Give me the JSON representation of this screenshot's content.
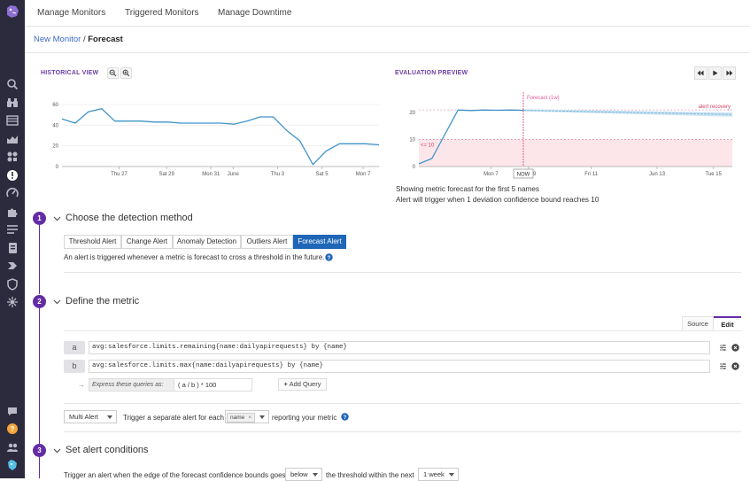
{
  "nav": {
    "tabs": [
      "Manage Monitors",
      "Triggered Monitors",
      "Manage Downtime"
    ]
  },
  "sidebar": {
    "icons": [
      "search-icon",
      "binoculars-icon",
      "dashboard-icon",
      "infrastructure-icon",
      "integrations-icon",
      "monitors-icon",
      "apm-icon",
      "puzzle-icon",
      "logs-icon",
      "notebook-icon",
      "synthetics-icon",
      "security-icon",
      "rum-icon",
      "chat-icon",
      "help-icon",
      "team-icon",
      "user-icon"
    ]
  },
  "breadcrumb": {
    "link": "New Monitor",
    "separator": "/",
    "current": "Forecast"
  },
  "historical": {
    "title": "HISTORICAL VIEW",
    "chart_data": {
      "type": "line",
      "title": "",
      "ylim": [
        0,
        60
      ],
      "yticks": [
        0,
        20,
        40,
        60
      ],
      "xticks": [
        "Thu 27",
        "Sat 29",
        "Mon 31",
        "June",
        "Thu 3",
        "Sat 5",
        "Mon 7"
      ],
      "series": [
        {
          "color": "#3f93c9",
          "x": [
            0,
            1,
            2,
            3,
            4,
            5,
            6,
            7,
            8,
            9,
            10,
            11,
            12,
            13,
            14,
            15,
            16,
            17,
            18,
            19,
            20,
            21,
            22,
            23,
            24
          ],
          "values": [
            46,
            42,
            53,
            56,
            44,
            44,
            44,
            43,
            43,
            42,
            42,
            42,
            42,
            41,
            44,
            48,
            48,
            35,
            25,
            2,
            15,
            22,
            22,
            22,
            21
          ]
        }
      ]
    }
  },
  "evaluation": {
    "title": "EVALUATION PREVIEW",
    "chart_data": {
      "type": "line",
      "title": "",
      "ylim": [
        0,
        25
      ],
      "yticks": [
        0,
        10,
        20
      ],
      "xticks": [
        "Mon 7",
        "Wed 9",
        "Fri 11",
        "Jun 13",
        "Tue 15"
      ],
      "threshold_alert": 10,
      "threshold_label": "<= 10",
      "recovery_label": "alert recovery",
      "forecast_label": "Forecast (1w)",
      "now_label": "NOW",
      "series": [
        {
          "color": "#3f93c9",
          "x": [
            0,
            1,
            2,
            3,
            4,
            5,
            6,
            7,
            8
          ],
          "values": [
            1,
            3,
            12,
            21,
            20.8,
            21,
            20.9,
            21,
            20.9
          ]
        },
        {
          "color": "#7cb8de",
          "x": [
            8,
            10,
            12,
            14,
            16,
            18,
            20,
            22,
            24
          ],
          "values": [
            20.9,
            20.7,
            20.5,
            20.3,
            20.1,
            19.9,
            19.7,
            19.5,
            19.3
          ]
        }
      ]
    },
    "info_line1": "Showing metric forecast for the first 5 names",
    "info_line2": "Alert will trigger when 1 deviation confidence bound reaches 10"
  },
  "steps": [
    {
      "number": "1",
      "title": "Choose the detection method"
    },
    {
      "number": "2",
      "title": "Define the metric"
    },
    {
      "number": "3",
      "title": "Set alert conditions"
    }
  ],
  "detection": {
    "options": [
      "Threshold Alert",
      "Change Alert",
      "Anomaly Detection",
      "Outliers Alert",
      "Forecast Alert"
    ],
    "active": "Forecast Alert",
    "description": "An alert is triggered whenever a metric is forecast to cross a threshold in the future."
  },
  "metric": {
    "source_tab": "Source",
    "edit_tab": "Edit",
    "queries": [
      {
        "label": "a",
        "value": "avg:salesforce.limits.remaining{name:dailyapirequests} by {name}"
      },
      {
        "label": "b",
        "value": "avg:salesforce.limits.max{name:dailyapirequests} by {name}"
      }
    ],
    "express_label": "Express these queries as:",
    "express_value": "( a / b ) * 100",
    "add_query": "Add Query",
    "alert_mode": "Multi Alert",
    "trigger_text": "Trigger a separate alert for each",
    "tag": "name",
    "reporting_text": "reporting your metric"
  },
  "conditions": {
    "text1": "Trigger an alert when the edge of the forecast confidence bounds goes",
    "direction": "below",
    "text2": "the threshold within the next",
    "window": "1 week"
  },
  "colors": {
    "accent": "#632ca6",
    "primary": "#1f66b8",
    "line": "#3f93c9",
    "alert_fill": "#fde6ea",
    "forecast": "#e05a9c"
  }
}
